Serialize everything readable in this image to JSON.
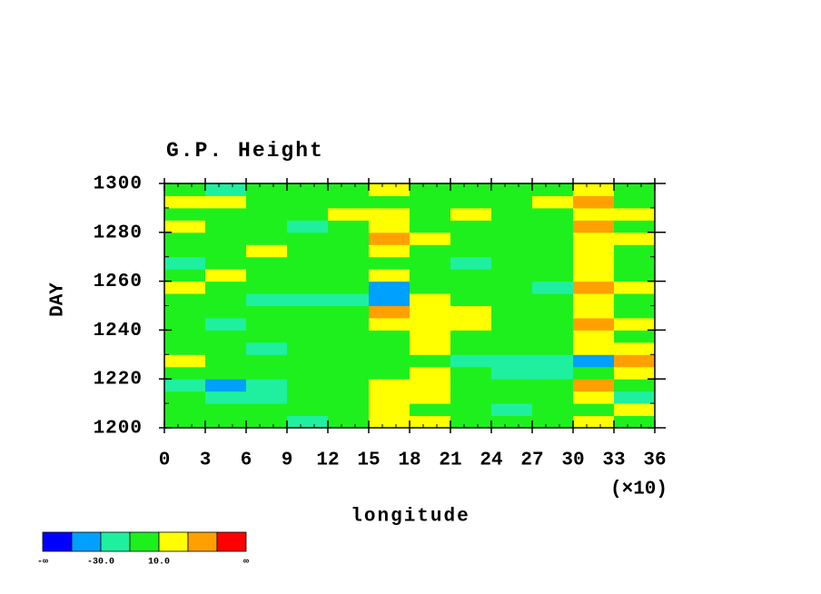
{
  "chart_data": {
    "type": "heatmap",
    "title": "G.P. Height",
    "xlabel": "longitude",
    "ylabel": "DAY",
    "x_scale_label": "(×10)",
    "xlim": [
      0,
      36
    ],
    "xticks": [
      0,
      3,
      6,
      9,
      12,
      15,
      18,
      21,
      24,
      27,
      30,
      33,
      36
    ],
    "xminor_step": 1,
    "ylim": [
      1200,
      1300
    ],
    "yticks": [
      1200,
      1220,
      1240,
      1260,
      1280,
      1300
    ],
    "yminor_step": 10,
    "x": [
      1.5,
      4.5,
      7.5,
      10.5,
      13.5,
      16.5,
      19.5,
      22.5,
      25.5,
      28.5,
      31.5,
      34.5
    ],
    "y": [
      1202.5,
      1207.5,
      1212.5,
      1217.5,
      1222.5,
      1227.5,
      1232.5,
      1237.5,
      1242.5,
      1247.5,
      1252.5,
      1257.5,
      1262.5,
      1267.5,
      1272.5,
      1277.5,
      1282.5,
      1287.5,
      1292.5,
      1297.5
    ],
    "z": [
      [
        0,
        0,
        0,
        -20,
        0,
        20,
        20,
        0,
        0,
        0,
        20,
        0
      ],
      [
        0,
        0,
        0,
        0,
        0,
        20,
        0,
        0,
        -20,
        0,
        0,
        20
      ],
      [
        0,
        -20,
        -20,
        0,
        0,
        20,
        20,
        0,
        0,
        0,
        20,
        -20
      ],
      [
        -20,
        -40,
        -20,
        0,
        0,
        20,
        20,
        0,
        0,
        0,
        40,
        0
      ],
      [
        0,
        0,
        0,
        0,
        0,
        0,
        20,
        0,
        -20,
        -20,
        0,
        20
      ],
      [
        20,
        0,
        0,
        0,
        0,
        0,
        0,
        -20,
        -20,
        -20,
        -40,
        40
      ],
      [
        0,
        0,
        -20,
        0,
        0,
        0,
        20,
        0,
        0,
        0,
        20,
        20
      ],
      [
        0,
        0,
        0,
        0,
        0,
        0,
        20,
        0,
        0,
        0,
        20,
        0
      ],
      [
        0,
        -20,
        0,
        0,
        0,
        20,
        20,
        20,
        0,
        0,
        40,
        20
      ],
      [
        0,
        0,
        0,
        0,
        0,
        40,
        20,
        20,
        0,
        0,
        20,
        0
      ],
      [
        0,
        0,
        -20,
        -20,
        -20,
        -40,
        20,
        0,
        0,
        0,
        20,
        0
      ],
      [
        20,
        0,
        0,
        0,
        0,
        -40,
        0,
        0,
        0,
        -20,
        40,
        20
      ],
      [
        0,
        20,
        0,
        0,
        0,
        20,
        0,
        0,
        0,
        0,
        20,
        0
      ],
      [
        -20,
        0,
        0,
        0,
        0,
        0,
        0,
        -20,
        0,
        0,
        20,
        0
      ],
      [
        0,
        0,
        20,
        0,
        0,
        20,
        0,
        0,
        0,
        0,
        20,
        0
      ],
      [
        0,
        0,
        0,
        0,
        0,
        40,
        20,
        0,
        0,
        0,
        20,
        20
      ],
      [
        20,
        0,
        0,
        -20,
        0,
        20,
        0,
        0,
        0,
        0,
        40,
        0
      ],
      [
        0,
        0,
        0,
        0,
        20,
        20,
        0,
        20,
        0,
        0,
        20,
        20
      ],
      [
        20,
        20,
        0,
        0,
        0,
        0,
        0,
        0,
        0,
        20,
        40,
        0
      ],
      [
        0,
        -20,
        0,
        0,
        0,
        20,
        0,
        0,
        0,
        0,
        20,
        0
      ]
    ],
    "colorbar": {
      "levels": [
        -50,
        -30,
        -10,
        10,
        30,
        50
      ],
      "colors": [
        "#0000ff",
        "#00a0ff",
        "#1ef0a0",
        "#1ef01e",
        "#ffff00",
        "#ffa000",
        "#ff0000"
      ],
      "ticks": [
        {
          "value": -30,
          "label": "-30.0"
        },
        {
          "value": 10,
          "label": "10.0"
        }
      ],
      "low_label": "-∞",
      "high_label": "∞"
    }
  }
}
